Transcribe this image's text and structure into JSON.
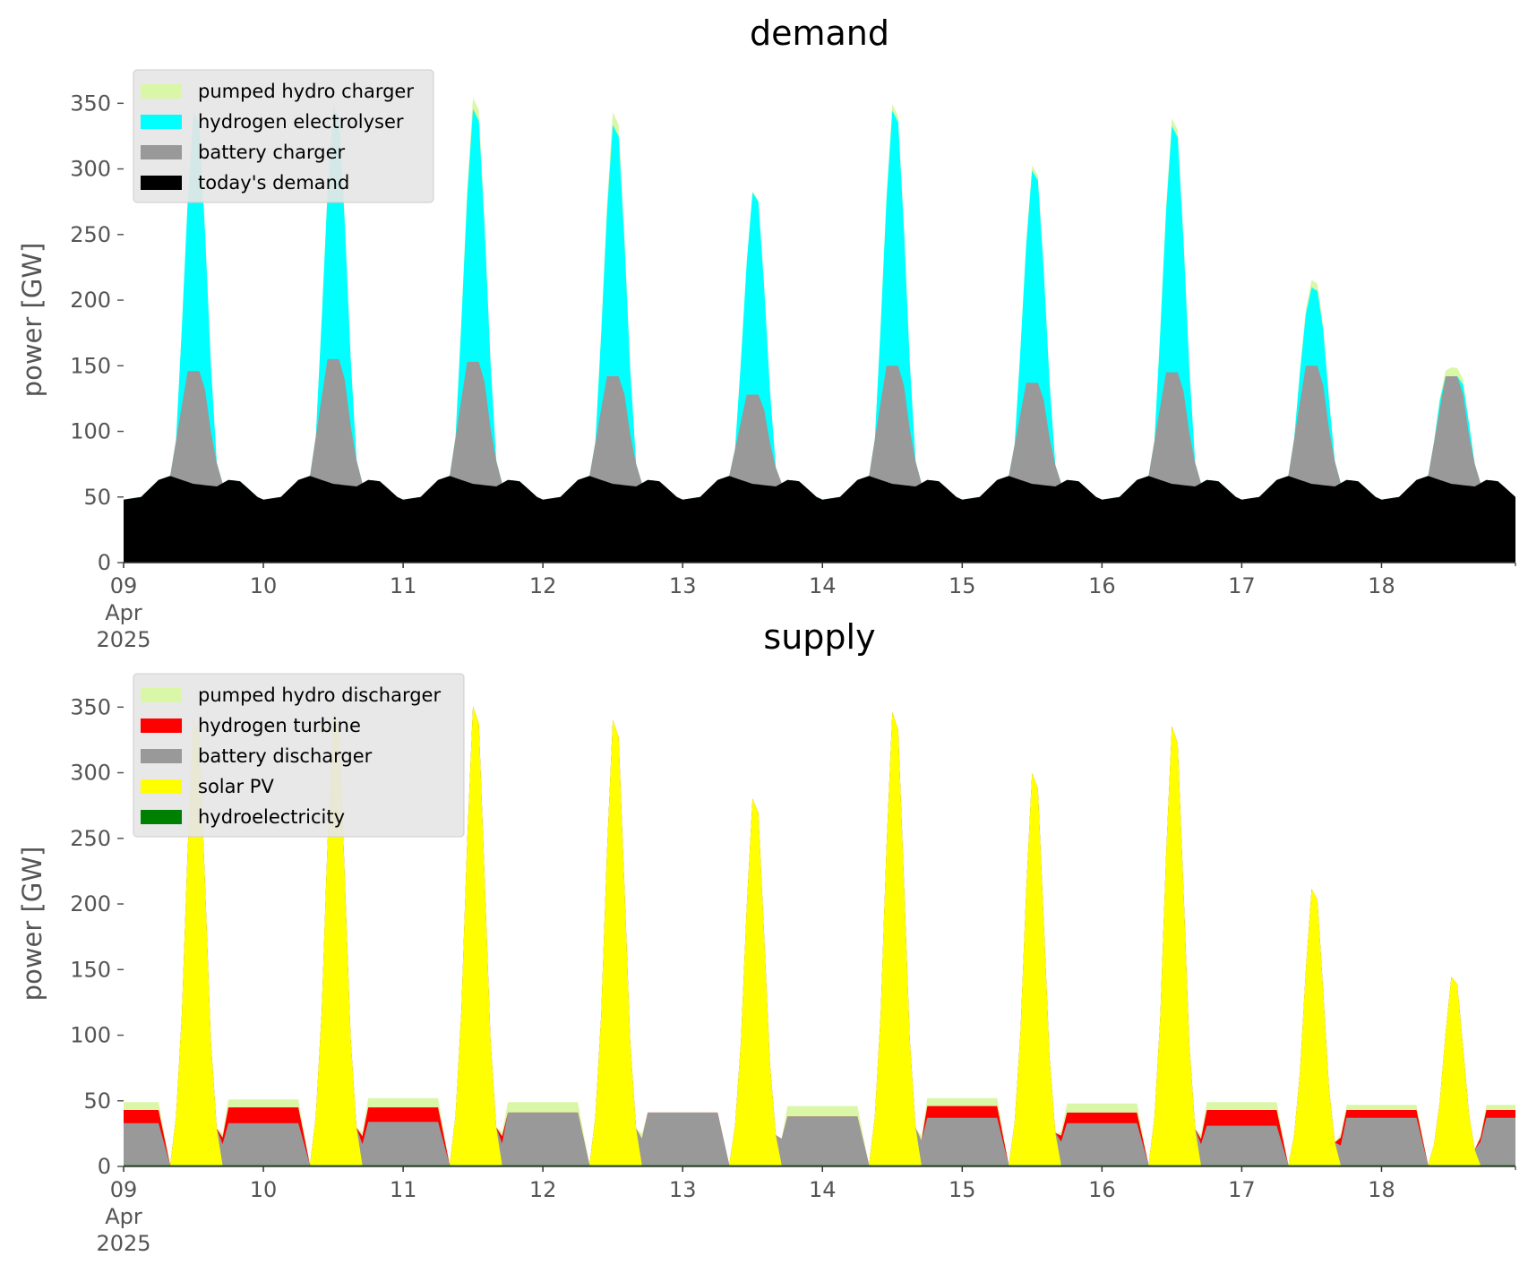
{
  "chart_data": [
    {
      "type": "area",
      "title": "demand",
      "xlabel": "",
      "ylabel": "power [GW]",
      "x_range": [
        "2025-04-09",
        "2025-04-18 23:00"
      ],
      "x_ticks": [
        {
          "value": "2025-04-09",
          "label": "09",
          "sub1": "Apr",
          "sub2": "2025"
        },
        {
          "value": "2025-04-10",
          "label": "10"
        },
        {
          "value": "2025-04-11",
          "label": "11"
        },
        {
          "value": "2025-04-12",
          "label": "12"
        },
        {
          "value": "2025-04-13",
          "label": "13"
        },
        {
          "value": "2025-04-14",
          "label": "14"
        },
        {
          "value": "2025-04-15",
          "label": "15"
        },
        {
          "value": "2025-04-16",
          "label": "16"
        },
        {
          "value": "2025-04-17",
          "label": "17"
        },
        {
          "value": "2025-04-18",
          "label": "18"
        }
      ],
      "ylim": [
        0,
        370
      ],
      "y_ticks": [
        0,
        50,
        100,
        150,
        200,
        250,
        300,
        350
      ],
      "grid": false,
      "stacked": true,
      "legend_position": "top-left",
      "series": [
        {
          "name": "today's demand",
          "color": "#000000",
          "daily_profile": [
            {
              "hour": 0,
              "value": 48
            },
            {
              "hour": 3,
              "value": 50
            },
            {
              "hour": 6,
              "value": 63
            },
            {
              "hour": 8,
              "value": 66
            },
            {
              "hour": 12,
              "value": 60
            },
            {
              "hour": 16,
              "value": 58
            },
            {
              "hour": 18,
              "value": 63
            },
            {
              "hour": 20,
              "value": 62
            },
            {
              "hour": 23,
              "value": 50
            }
          ]
        },
        {
          "name": "battery charger",
          "color": "#999999",
          "daily_peaks": [
            {
              "date": "2025-04-09",
              "value": 146
            },
            {
              "date": "2025-04-10",
              "value": 155
            },
            {
              "date": "2025-04-11",
              "value": 153
            },
            {
              "date": "2025-04-12",
              "value": 142
            },
            {
              "date": "2025-04-13",
              "value": 128
            },
            {
              "date": "2025-04-14",
              "value": 150
            },
            {
              "date": "2025-04-15",
              "value": 137
            },
            {
              "date": "2025-04-16",
              "value": 145
            },
            {
              "date": "2025-04-17",
              "value": 150
            },
            {
              "date": "2025-04-18",
              "value": 142
            }
          ]
        },
        {
          "name": "hydrogen electrolyser",
          "color": "#00ffff",
          "daily_peaks": [
            {
              "date": "2025-04-09",
              "value": 350
            },
            {
              "date": "2025-04-10",
              "value": 355
            },
            {
              "date": "2025-04-11",
              "value": 353
            },
            {
              "date": "2025-04-12",
              "value": 341
            },
            {
              "date": "2025-04-13",
              "value": 288
            },
            {
              "date": "2025-04-14",
              "value": 352
            },
            {
              "date": "2025-04-15",
              "value": 305
            },
            {
              "date": "2025-04-16",
              "value": 340
            },
            {
              "date": "2025-04-17",
              "value": 212
            },
            {
              "date": "2025-04-18",
              "value": 142
            }
          ]
        },
        {
          "name": "pumped hydro charger",
          "color": "#d9f7a6",
          "daily_peaks": [
            {
              "date": "2025-04-09",
              "value": 352
            },
            {
              "date": "2025-04-10",
              "value": 358
            },
            {
              "date": "2025-04-11",
              "value": 362
            },
            {
              "date": "2025-04-12",
              "value": 351
            },
            {
              "date": "2025-04-13",
              "value": 289
            },
            {
              "date": "2025-04-14",
              "value": 357
            },
            {
              "date": "2025-04-15",
              "value": 309
            },
            {
              "date": "2025-04-16",
              "value": 346
            },
            {
              "date": "2025-04-17",
              "value": 218
            },
            {
              "date": "2025-04-18",
              "value": 149
            }
          ]
        }
      ]
    },
    {
      "type": "area",
      "title": "supply",
      "xlabel": "",
      "ylabel": "power [GW]",
      "x_range": [
        "2025-04-09",
        "2025-04-18 23:00"
      ],
      "x_ticks": [
        {
          "value": "2025-04-09",
          "label": "09",
          "sub1": "Apr",
          "sub2": "2025"
        },
        {
          "value": "2025-04-10",
          "label": "10"
        },
        {
          "value": "2025-04-11",
          "label": "11"
        },
        {
          "value": "2025-04-12",
          "label": "12"
        },
        {
          "value": "2025-04-13",
          "label": "13"
        },
        {
          "value": "2025-04-14",
          "label": "14"
        },
        {
          "value": "2025-04-15",
          "label": "15"
        },
        {
          "value": "2025-04-16",
          "label": "16"
        },
        {
          "value": "2025-04-17",
          "label": "17"
        },
        {
          "value": "2025-04-18",
          "label": "18"
        }
      ],
      "ylim": [
        0,
        370
      ],
      "y_ticks": [
        0,
        50,
        100,
        150,
        200,
        250,
        300,
        350
      ],
      "grid": false,
      "stacked": true,
      "legend_position": "top-left",
      "series": [
        {
          "name": "hydroelectricity",
          "color": "#008000",
          "typical_value": 1
        },
        {
          "name": "solar PV",
          "color": "#ffff00",
          "daily_peaks": [
            {
              "date": "2025-04-09",
              "value": 352
            },
            {
              "date": "2025-04-10",
              "value": 358
            },
            {
              "date": "2025-04-11",
              "value": 362
            },
            {
              "date": "2025-04-12",
              "value": 351
            },
            {
              "date": "2025-04-13",
              "value": 289
            },
            {
              "date": "2025-04-14",
              "value": 357
            },
            {
              "date": "2025-04-15",
              "value": 309
            },
            {
              "date": "2025-04-16",
              "value": 346
            },
            {
              "date": "2025-04-17",
              "value": 218
            },
            {
              "date": "2025-04-18",
              "value": 149
            }
          ]
        },
        {
          "name": "battery discharger",
          "color": "#999999",
          "night_level": [
            {
              "date": "2025-04-09",
              "value": 32
            },
            {
              "date": "2025-04-10",
              "value": 32
            },
            {
              "date": "2025-04-11",
              "value": 33
            },
            {
              "date": "2025-04-12",
              "value": 40
            },
            {
              "date": "2025-04-13",
              "value": 40
            },
            {
              "date": "2025-04-14",
              "value": 37
            },
            {
              "date": "2025-04-15",
              "value": 36
            },
            {
              "date": "2025-04-16",
              "value": 32
            },
            {
              "date": "2025-04-17",
              "value": 30
            },
            {
              "date": "2025-04-18",
              "value": 36
            }
          ]
        },
        {
          "name": "hydrogen turbine",
          "color": "#ff0000",
          "night_level": [
            {
              "date": "2025-04-09",
              "value": 10
            },
            {
              "date": "2025-04-10",
              "value": 12
            },
            {
              "date": "2025-04-11",
              "value": 11
            },
            {
              "date": "2025-04-12",
              "value": 0
            },
            {
              "date": "2025-04-13",
              "value": 0
            },
            {
              "date": "2025-04-14",
              "value": 0
            },
            {
              "date": "2025-04-15",
              "value": 9
            },
            {
              "date": "2025-04-16",
              "value": 8
            },
            {
              "date": "2025-04-17",
              "value": 12
            },
            {
              "date": "2025-04-18",
              "value": 6
            }
          ]
        },
        {
          "name": "pumped hydro discharger",
          "color": "#d9f7a6",
          "night_level": [
            {
              "date": "2025-04-09",
              "value": 6
            },
            {
              "date": "2025-04-10",
              "value": 6
            },
            {
              "date": "2025-04-11",
              "value": 7
            },
            {
              "date": "2025-04-12",
              "value": 8
            },
            {
              "date": "2025-04-13",
              "value": 0
            },
            {
              "date": "2025-04-14",
              "value": 8
            },
            {
              "date": "2025-04-15",
              "value": 6
            },
            {
              "date": "2025-04-16",
              "value": 7
            },
            {
              "date": "2025-04-17",
              "value": 6
            },
            {
              "date": "2025-04-18",
              "value": 4
            }
          ]
        }
      ]
    }
  ]
}
